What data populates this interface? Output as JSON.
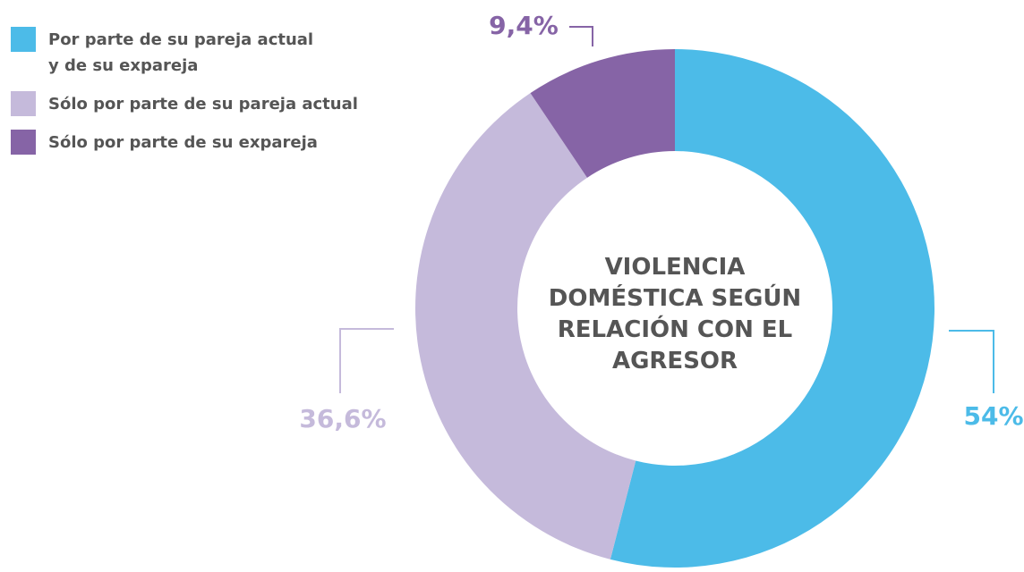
{
  "chart_data": {
    "type": "donut",
    "title": "VIOLENCIA DOMÉSTICA SEGÚN RELACIÓN CON EL AGRESOR",
    "categories": [
      "Por parte de su pareja actual y de su expareja",
      "Sólo por parte de su pareja actual",
      "Sólo por parte de su expareja"
    ],
    "values": [
      54,
      36.6,
      9.4
    ],
    "value_labels": [
      "54%",
      "36,6%",
      "9,4%"
    ],
    "colors": [
      "#4cbbe8",
      "#c5badb",
      "#8664a6"
    ],
    "legend": "top-left"
  }
}
